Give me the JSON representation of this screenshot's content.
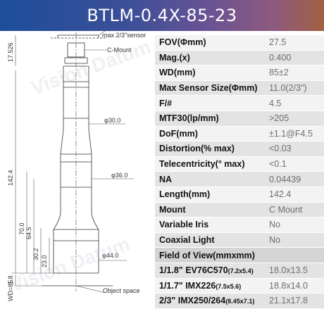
{
  "title": "BTLM-0.4X-85-23",
  "drawing": {
    "max_sensor_label": "max 2/3\"sensor",
    "c_mount_label": "C-Mount",
    "dia_30": "φ30.0",
    "dia_36": "φ36.0",
    "dia_44": "φ44.0",
    "dim_17_526": "17.526",
    "dim_142_4": "142.4",
    "dim_70_0": "70.0",
    "dim_64_5": "64.5",
    "dim_30_2": "30.2",
    "dim_23_0": "23.0",
    "dim_1_8": "1.8",
    "dim_wd": "WD=85",
    "object_space_label": "Object space",
    "watermark": "Vision Datum"
  },
  "specs": [
    {
      "label": "FOV(Φmm)",
      "value": "27.5"
    },
    {
      "label": "Mag.(x)",
      "value": "0.400"
    },
    {
      "label": "WD(mm)",
      "value": "85±2"
    },
    {
      "label": "Max Sensor Size(Φmm)",
      "value": "11.0(2/3\")"
    },
    {
      "label": "F/#",
      "value": "4.5"
    },
    {
      "label": "MTF30(lp/mm)",
      "value": ">205"
    },
    {
      "label": "DoF(mm)",
      "value": "±1.1@F4.5"
    },
    {
      "label": "Distortion(% max)",
      "value": "<0.03"
    },
    {
      "label": "Telecentricity(° max)",
      "value": "<0.1"
    },
    {
      "label": "NA",
      "value": "0.04439"
    },
    {
      "label": "Length(mm)",
      "value": "142.4"
    },
    {
      "label": "Mount",
      "value": "C Mount"
    },
    {
      "label": "Variable Iris",
      "value": "No"
    },
    {
      "label": "Coaxial Light",
      "value": "No"
    }
  ],
  "fov_header": "Field of View(mmxmm)",
  "fov_rows": [
    {
      "sensor": "1/1.8\" EV76C570",
      "size": "(7.2x5.4)",
      "value": "18.0x13.5"
    },
    {
      "sensor": "1/1.7\" IMX226",
      "size": "(7.5x5.6)",
      "value": "18.8x14.0"
    },
    {
      "sensor": "2/3\" IMX250/264",
      "size": "(8.45x7.1)",
      "value": "21.1x17.8"
    }
  ]
}
